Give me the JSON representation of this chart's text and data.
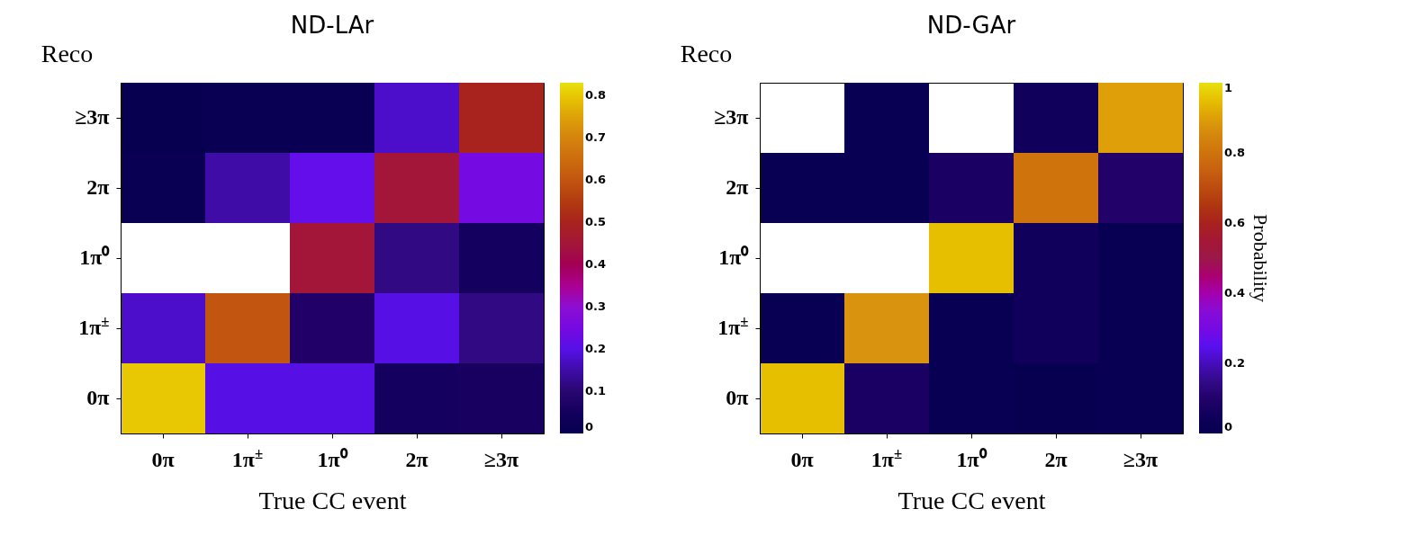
{
  "chart_data": [
    {
      "type": "heatmap",
      "title": "ND-LAr",
      "xlabel": "True CC event",
      "ylabel": "Reco",
      "categories": [
        "0π",
        "1π$^{±}$",
        "1π⁰",
        "2π",
        "≥3π"
      ],
      "y_categories": [
        "≥3π",
        "2π",
        "1π⁰",
        "1π$^{±}$",
        "0π"
      ],
      "cells": [
        [
          0.01,
          0.02,
          0.02,
          0.18,
          0.5
        ],
        [
          0.02,
          0.15,
          0.22,
          0.45,
          0.25
        ],
        [
          null,
          null,
          0.45,
          0.12,
          0.05
        ],
        [
          0.18,
          0.6,
          0.08,
          0.2,
          0.12
        ],
        [
          0.8,
          0.2,
          0.2,
          0.05,
          0.06
        ]
      ],
      "clim": [
        0,
        0.83
      ],
      "cticks": [
        0,
        0.1,
        0.2,
        0.3,
        0.4,
        0.5,
        0.6,
        0.7,
        0.8
      ]
    },
    {
      "type": "heatmap",
      "title": "ND-GAr",
      "xlabel": "True CC event",
      "ylabel": "Reco",
      "clabel": "Probability",
      "categories": [
        "0π",
        "1π$^{±}$",
        "1π⁰",
        "2π",
        "≥3π"
      ],
      "y_categories": [
        "≥3π",
        "2π",
        "1π⁰",
        "1π$^{±}$",
        "0π"
      ],
      "cells": [
        [
          null,
          0.02,
          null,
          0.05,
          0.9
        ],
        [
          0.02,
          0.02,
          0.08,
          0.8,
          0.1
        ],
        [
          null,
          null,
          0.95,
          0.05,
          0.02
        ],
        [
          0.02,
          0.88,
          0.02,
          0.05,
          0.02
        ],
        [
          0.95,
          0.08,
          0.02,
          0.01,
          0.02
        ]
      ],
      "clim": [
        0,
        1
      ],
      "cticks": [
        0,
        0.2,
        0.4,
        0.6,
        0.8,
        1
      ]
    }
  ]
}
